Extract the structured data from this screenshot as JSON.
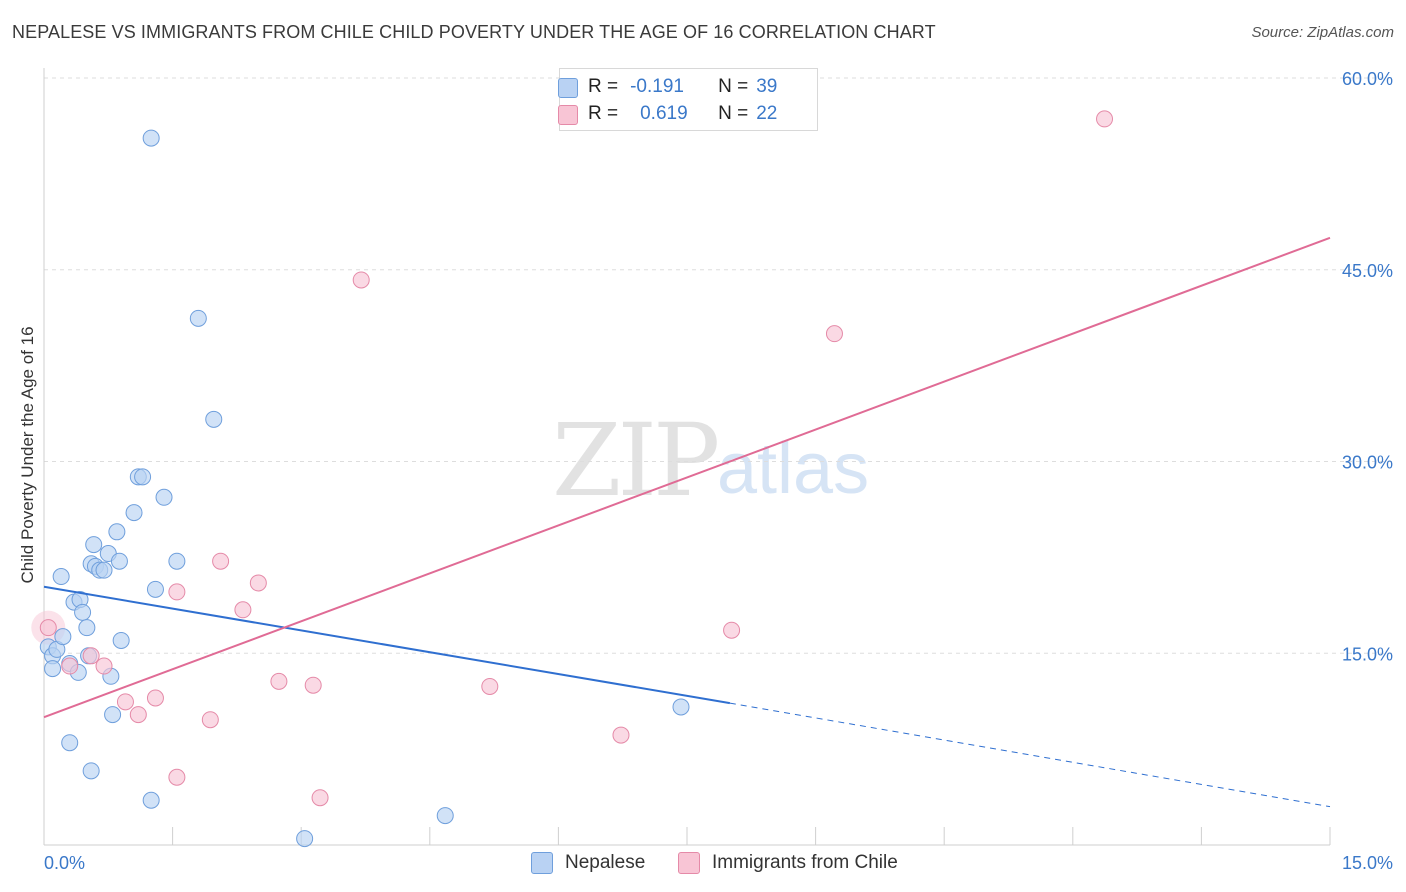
{
  "chart_data": {
    "type": "scatter",
    "title": "NEPALESE VS IMMIGRANTS FROM CHILE CHILD POVERTY UNDER THE AGE OF 16 CORRELATION CHART",
    "source": "Source: ZipAtlas.com",
    "xlabel": "",
    "ylabel": "Child Poverty Under the Age of 16",
    "xlim": [
      0,
      15
    ],
    "ylim": [
      0,
      60
    ],
    "x_tick_labels": [
      "0.0%",
      "15.0%"
    ],
    "y_ticks": [
      15,
      30,
      45,
      60
    ],
    "y_tick_labels": [
      "15.0%",
      "30.0%",
      "45.0%",
      "60.0%"
    ],
    "grid": true,
    "watermark": {
      "zip": "ZIP",
      "atlas": "atlas"
    },
    "colors": {
      "nepalese_fill": "#b9d2f3",
      "nepalese_stroke": "#6f9fdc",
      "nepalese_line": "#2f6fd0",
      "chile_fill": "#f8c5d5",
      "chile_stroke": "#e58aa8",
      "chile_line": "#e06b95",
      "value_text": "#3a78c9"
    },
    "legend": {
      "rows": [
        {
          "series": "Nepalese",
          "r_label": "R =",
          "r_value": "-0.191",
          "n_label": "N =",
          "n_value": "39"
        },
        {
          "series": "Immigrants from Chile",
          "r_label": "R =",
          "r_value": "0.619",
          "n_label": "N =",
          "n_value": "22"
        }
      ]
    },
    "series": [
      {
        "name": "Nepalese",
        "points": [
          [
            0.05,
            15.5
          ],
          [
            0.1,
            14.8
          ],
          [
            0.1,
            13.8
          ],
          [
            0.15,
            15.3
          ],
          [
            0.2,
            21.0
          ],
          [
            0.22,
            16.3
          ],
          [
            0.3,
            14.2
          ],
          [
            0.35,
            19.0
          ],
          [
            0.4,
            13.5
          ],
          [
            0.42,
            19.2
          ],
          [
            0.45,
            18.2
          ],
          [
            0.5,
            17.0
          ],
          [
            0.52,
            14.8
          ],
          [
            0.55,
            22.0
          ],
          [
            0.58,
            23.5
          ],
          [
            0.6,
            21.8
          ],
          [
            0.65,
            21.5
          ],
          [
            0.7,
            21.5
          ],
          [
            0.75,
            22.8
          ],
          [
            0.78,
            13.2
          ],
          [
            0.8,
            10.2
          ],
          [
            0.85,
            24.5
          ],
          [
            0.88,
            22.2
          ],
          [
            0.9,
            16.0
          ],
          [
            1.05,
            26.0
          ],
          [
            1.1,
            28.8
          ],
          [
            1.15,
            28.8
          ],
          [
            1.3,
            20.0
          ],
          [
            1.4,
            27.2
          ],
          [
            1.55,
            22.2
          ],
          [
            0.3,
            8.0
          ],
          [
            0.55,
            5.8
          ],
          [
            1.25,
            3.5
          ],
          [
            1.25,
            55.3
          ],
          [
            1.8,
            41.2
          ],
          [
            1.98,
            33.3
          ],
          [
            3.04,
            0.5
          ],
          [
            4.68,
            2.3
          ],
          [
            7.43,
            10.8
          ]
        ],
        "trend": {
          "x0": 0,
          "y0": 20.2,
          "x1": 8.0,
          "y1": 11.1
        },
        "trend_extension": {
          "x0": 8.0,
          "y0": 11.1,
          "x1": 15.0,
          "y1": 3.0
        }
      },
      {
        "name": "Immigrants from Chile",
        "points": [
          [
            0.05,
            17.0
          ],
          [
            0.3,
            14.0
          ],
          [
            0.55,
            14.8
          ],
          [
            0.7,
            14.0
          ],
          [
            0.95,
            11.2
          ],
          [
            1.1,
            10.2
          ],
          [
            1.3,
            11.5
          ],
          [
            1.55,
            19.8
          ],
          [
            1.55,
            5.3
          ],
          [
            1.94,
            9.8
          ],
          [
            2.06,
            22.2
          ],
          [
            2.32,
            18.4
          ],
          [
            2.5,
            20.5
          ],
          [
            2.74,
            12.8
          ],
          [
            3.14,
            12.5
          ],
          [
            3.22,
            3.7
          ],
          [
            3.7,
            44.2
          ],
          [
            5.2,
            12.4
          ],
          [
            6.73,
            8.6
          ],
          [
            8.02,
            16.8
          ],
          [
            9.22,
            40.0
          ],
          [
            12.37,
            56.8
          ]
        ],
        "trend": {
          "x0": 0,
          "y0": 10.0,
          "x1": 15.0,
          "y1": 47.5
        }
      }
    ]
  }
}
